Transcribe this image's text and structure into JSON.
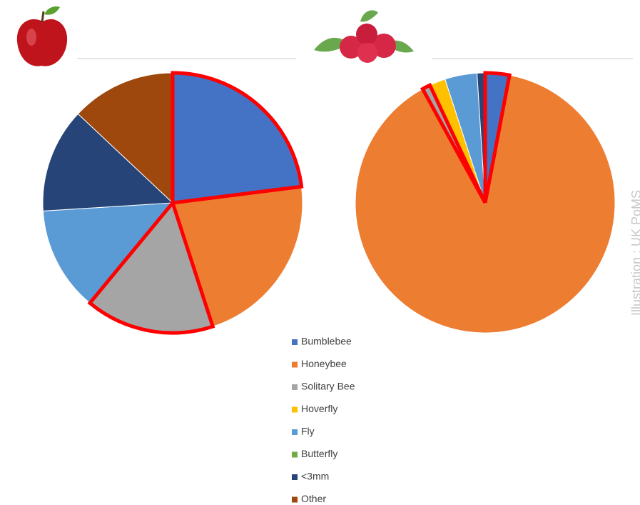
{
  "chart_data": [
    {
      "type": "pie",
      "categories": [
        "Bumblebee",
        "Honeybee",
        "Solitary Bee",
        "Hoverfly",
        "Fly",
        "Butterfly",
        "<3mm",
        "Other"
      ],
      "values": [
        23,
        22,
        16,
        0,
        13,
        0,
        13,
        13
      ],
      "colors": [
        "#4472c4",
        "#ed7d31",
        "#a5a5a5",
        "#ffc000",
        "#5b9bd5",
        "#70ad47",
        "#264478",
        "#9e480e"
      ],
      "highlighted": [
        0,
        2
      ],
      "highlight_color": "#ff0000"
    },
    {
      "type": "pie",
      "categories": [
        "Bumblebee",
        "Honeybee",
        "Solitary Bee",
        "Hoverfly",
        "Fly",
        "Butterfly",
        "<3mm",
        "Other"
      ],
      "values": [
        3,
        89,
        1,
        2,
        4,
        0,
        1,
        0
      ],
      "colors": [
        "#4472c4",
        "#ed7d31",
        "#a5a5a5",
        "#ffc000",
        "#5b9bd5",
        "#70ad47",
        "#264478",
        "#9e480e"
      ],
      "highlighted": [
        0,
        2
      ],
      "highlight_color": "#ff0000"
    }
  ],
  "credit": "Illustration : UK PoMS"
}
